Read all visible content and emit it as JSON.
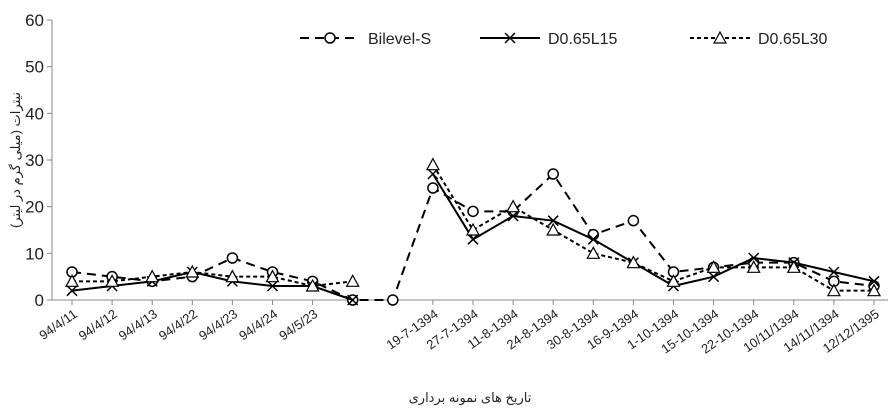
{
  "chart_data": {
    "type": "line",
    "x_label": "تاریخ های نمونه برداری",
    "y_label": "نیترات (میلی گرم در لیتر)",
    "categories": [
      "94/4/11",
      "94/4/12",
      "94/4/13",
      "94/4/22",
      "94/4/23",
      "94/4/24",
      "94/5/23",
      null,
      null,
      "19-7-1394",
      "27-7-1394",
      "11-8-1394",
      "24-8-1394",
      "30-8-1394",
      "16-9-1394",
      "1-10-1394",
      "15-10-1394",
      "22-10-1394",
      "10/11/1394",
      "14/11/1394",
      "12/12/1395"
    ],
    "series": [
      {
        "name": "Bilevel-S",
        "color": "#000000",
        "dash": "9,6",
        "marker": "circle",
        "values": [
          6,
          5,
          4,
          5,
          9,
          6,
          4,
          0,
          0,
          24,
          19,
          19,
          27,
          14,
          17,
          6,
          7,
          8,
          8,
          4,
          3
        ]
      },
      {
        "name": "D0.65L15",
        "color": "#000000",
        "dash": "none",
        "marker": "x",
        "values": [
          2,
          3,
          4,
          6,
          4,
          3,
          3,
          0,
          null,
          27,
          13,
          18,
          17,
          13,
          8,
          3,
          5,
          9,
          8,
          6,
          4
        ]
      },
      {
        "name": "D0.65L30",
        "color": "#000000",
        "dash": "4,3",
        "marker": "triangle",
        "values": [
          4,
          4,
          5,
          6,
          5,
          5,
          3,
          4,
          null,
          29,
          15,
          20,
          15,
          10,
          8,
          4,
          7,
          7,
          7,
          2,
          2
        ]
      }
    ],
    "ylim": [
      0,
      60
    ],
    "yticks": [
      0,
      10,
      20,
      30,
      40,
      50,
      60
    ],
    "grid": false,
    "legend": "top"
  }
}
